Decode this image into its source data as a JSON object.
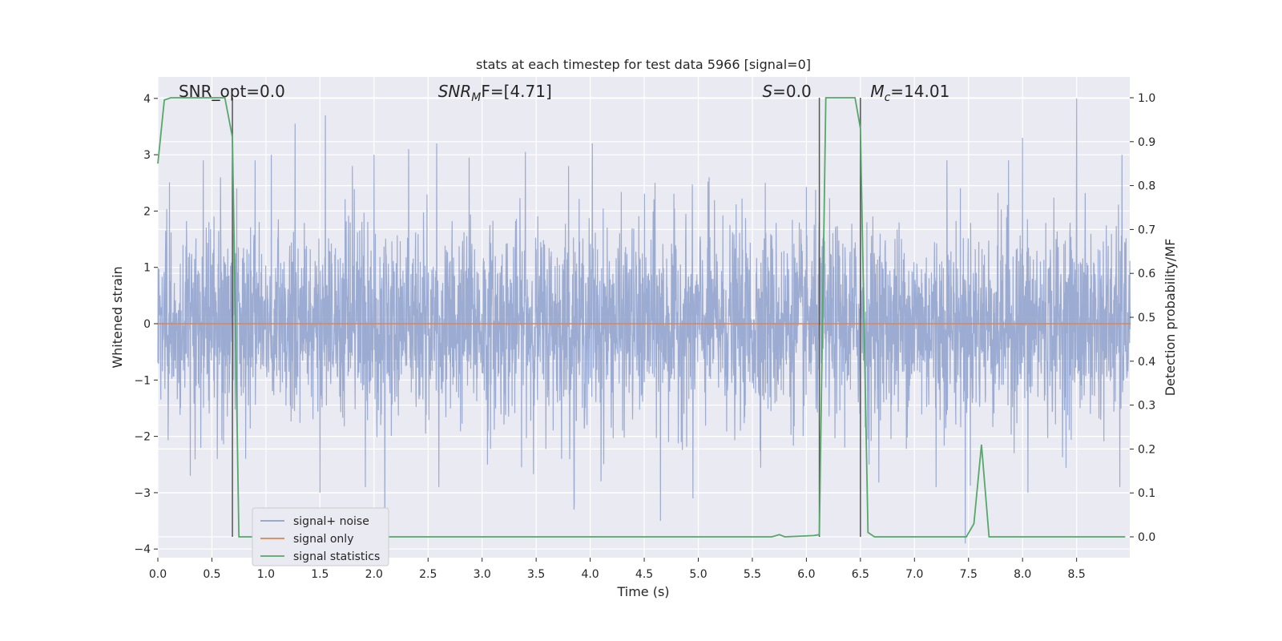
{
  "chart_data": {
    "type": "line",
    "title": "stats at each timestep for test data 5966 [signal=0]",
    "xlabel": "Time (s)",
    "ylabel": "Whitened strain",
    "ylabel_right": "Detection probability/MF",
    "xlim": [
      0.0,
      9.0
    ],
    "ylim": [
      -4.2,
      4.2
    ],
    "ylim_right": [
      -0.05,
      1.05
    ],
    "x_ticks": [
      "0.0",
      "0.5",
      "1.0",
      "1.5",
      "2.0",
      "2.5",
      "3.0",
      "3.5",
      "4.0",
      "4.5",
      "5.0",
      "5.5",
      "6.0",
      "6.5",
      "7.0",
      "7.5",
      "8.0",
      "8.5"
    ],
    "y_ticks": [
      "4",
      "3",
      "2",
      "1",
      "0",
      "−1",
      "−2",
      "−3",
      "−4"
    ],
    "y_ticks_right": [
      "1.0",
      "0.9",
      "0.8",
      "0.7",
      "0.6",
      "0.5",
      "0.4",
      "0.3",
      "0.2",
      "0.1",
      "0.0"
    ],
    "grid": true,
    "legend_position": "lower-left",
    "annotations": [
      {
        "text": "SNR_opt=0.0",
        "x": 0.2
      },
      {
        "text": "SNR",
        "sub": "M",
        "suffix": "F=[4.71]",
        "x": 2.6
      },
      {
        "text": "S",
        "suffix": "=0.0",
        "x": 5.6
      },
      {
        "text": "M",
        "sub": "c",
        "suffix": "=14.01",
        "x": 6.6
      }
    ],
    "vlines_x": [
      0.69,
      6.12,
      6.5
    ],
    "series": [
      {
        "name": "signal+ noise",
        "color": "#8da0cb",
        "description_values": "dense whitened noise, mostly within ±1.6, peaks near ±4",
        "spikes": [
          [
            0.42,
            2.9
          ],
          [
            0.58,
            2.6
          ],
          [
            0.73,
            2.4
          ],
          [
            0.9,
            2.9
          ],
          [
            1.05,
            3.0
          ],
          [
            1.27,
            3.55
          ],
          [
            1.55,
            3.7
          ],
          [
            1.8,
            2.8
          ],
          [
            2.0,
            3.0
          ],
          [
            2.32,
            3.1
          ],
          [
            2.58,
            3.2
          ],
          [
            2.88,
            2.95
          ],
          [
            3.4,
            3.05
          ],
          [
            3.8,
            2.8
          ],
          [
            4.02,
            3.2
          ],
          [
            4.6,
            2.5
          ],
          [
            5.1,
            2.6
          ],
          [
            5.62,
            2.5
          ],
          [
            6.5,
            2.6
          ],
          [
            7.3,
            2.9
          ],
          [
            7.87,
            2.9
          ],
          [
            8.0,
            3.3
          ],
          [
            8.5,
            4.0
          ],
          [
            8.92,
            3.0
          ],
          [
            0.3,
            -2.7
          ],
          [
            0.55,
            -2.4
          ],
          [
            1.5,
            -3.0
          ],
          [
            1.92,
            -2.9
          ],
          [
            2.1,
            -3.8
          ],
          [
            2.6,
            -2.9
          ],
          [
            3.05,
            -2.5
          ],
          [
            3.85,
            -3.3
          ],
          [
            4.1,
            -2.8
          ],
          [
            4.65,
            -3.5
          ],
          [
            4.95,
            -3.1
          ],
          [
            6.58,
            -2.5
          ],
          [
            7.2,
            -2.9
          ],
          [
            7.47,
            -3.9
          ],
          [
            8.05,
            -3.0
          ],
          [
            8.9,
            -2.9
          ]
        ]
      },
      {
        "name": "signal only",
        "color": "#dd8452",
        "x": [
          0.0,
          9.0
        ],
        "y": [
          0.0,
          0.0
        ]
      },
      {
        "name": "signal statistics",
        "color": "#55a868",
        "axis": "right",
        "x": [
          0.0,
          0.06,
          0.12,
          0.62,
          0.69,
          0.75,
          5.68,
          5.75,
          5.8,
          6.07,
          6.12,
          6.18,
          6.45,
          6.5,
          6.57,
          6.63,
          7.48,
          7.55,
          7.62,
          7.69,
          8.95
        ],
        "y": [
          0.85,
          0.995,
          1.0,
          1.0,
          0.91,
          0.0,
          0.0,
          0.005,
          0.0,
          0.003,
          0.005,
          1.0,
          1.0,
          0.93,
          0.01,
          0.0,
          0.0,
          0.03,
          0.21,
          0.0,
          0.0
        ]
      }
    ]
  }
}
